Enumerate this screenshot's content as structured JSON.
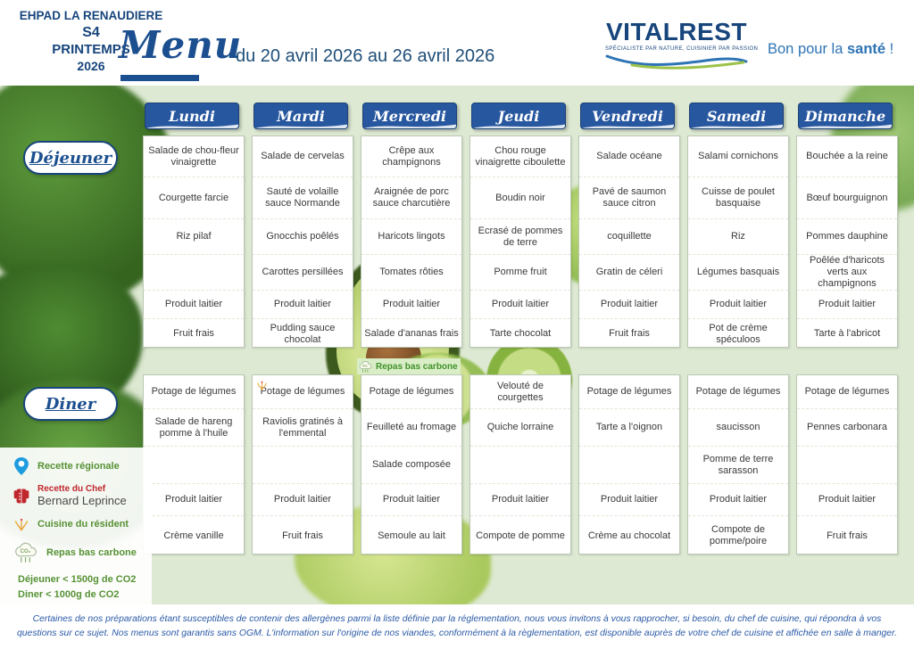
{
  "header": {
    "facility_line1": "EHPAD LA RENAUDIERE",
    "facility_line2": "S4",
    "facility_line3": "PRINTEMPS",
    "facility_line4": "2026",
    "menu_script": "Menu",
    "date_range": "du 20 avril 2026 au 26 avril 2026",
    "logo": {
      "brand": "VITALREST",
      "tagline": "SPÉCIALISTE PAR NATURE, CUISINIER PAR PASSION",
      "slogan_prefix": "Bon pour la ",
      "slogan_bold": "santé",
      "slogan_suffix": " !"
    }
  },
  "sections": {
    "lunch_label": "Déjeuner",
    "dinner_label": "Diner"
  },
  "days": [
    "Lundi",
    "Mardi",
    "Mercredi",
    "Jeudi",
    "Vendredi",
    "Samedi",
    "Dimanche"
  ],
  "lunch": [
    [
      "Salade de chou-fleur vinaigrette",
      "Courgette farcie",
      "Riz pilaf",
      "",
      "Produit laitier",
      "Fruit frais"
    ],
    [
      "Salade de cervelas",
      "Sauté de volaille sauce Normande",
      "Gnocchis poêlés",
      "Carottes persillées",
      "Produit laitier",
      "Pudding sauce chocolat"
    ],
    [
      "Crêpe aux champignons",
      "Araignée de porc sauce charcutière",
      "Haricots lingots",
      "Tomates rôties",
      "Produit laitier",
      "Salade d'ananas frais"
    ],
    [
      "Chou rouge vinaigrette ciboulette",
      "Boudin noir",
      "Ecrasé de pommes de terre",
      "Pomme fruit",
      "Produit laitier",
      "Tarte chocolat"
    ],
    [
      "Salade océane",
      "Pavé de saumon sauce citron",
      "coquillette",
      "Gratin de céleri",
      "Produit laitier",
      "Fruit frais"
    ],
    [
      "Salami cornichons",
      "Cuisse de poulet basquaise",
      "Riz",
      "Légumes basquais",
      "Produit laitier",
      "Pot de crème spéculoos"
    ],
    [
      "Bouchée a la reine",
      "Bœuf bourguignon",
      "Pommes dauphine",
      "Poêlée d'haricots verts aux champignons",
      "Produit laitier",
      "Tarte à l'abricot"
    ]
  ],
  "dinner": [
    [
      "Potage de légumes",
      "Salade de hareng pomme à l'huile",
      "",
      "Produit laitier",
      "Crème vanille"
    ],
    [
      "Potage de légumes",
      "Raviolis gratinés à l'emmental",
      "",
      "Produit laitier",
      "Fruit frais"
    ],
    [
      "Potage de légumes",
      "Feuilleté au fromage",
      "Salade composée",
      "Produit laitier",
      "Semoule au lait"
    ],
    [
      "Velouté de courgettes",
      "Quiche lorraine",
      "",
      "Produit laitier",
      "Compote de pomme"
    ],
    [
      "Potage de légumes",
      "Tarte a l'oignon",
      "",
      "Produit laitier",
      "Crème au chocolat"
    ],
    [
      "Potage de légumes",
      "saucisson",
      "Pomme de terre sarasson",
      "Produit laitier",
      "Compote de pomme/poire"
    ],
    [
      "Potage de légumes",
      "Pennes carbonara",
      "",
      "Produit laitier",
      "Fruit frais"
    ]
  ],
  "markers": {
    "low_carbon_label": "Repas bas carbone",
    "low_carbon_day_index": 2,
    "resident_icon_day_index": 1
  },
  "legend": {
    "regional_label": "Recette régionale",
    "chef_label": "Recette du Chef",
    "chef_name": "Bernard Leprince",
    "resident_label": "Cuisine du résident",
    "low_carbon_label": "Repas bas carbone",
    "low_carbon_line2": "Déjeuner < 1500g de CO2",
    "low_carbon_line3": "Diner < 1000g de CO2"
  },
  "footer": {
    "line1": "Certaines de nos préparations étant susceptibles de contenir des allergènes parmi la liste définie par la réglementation, nous vous invitons à vous rapprocher, si besoin, du chef de cuisine, qui répondra à vos",
    "line2": "questions sur ce sujet. Nos menus sont garantis sans OGM. L'information sur l'origine de nos viandes, conformément à la règlementation, est disponible auprès de votre chef de cuisine et affichée en salle à manger."
  },
  "colors": {
    "brand_blue": "#17457c",
    "day_header_blue": "#27579f",
    "legend_green": "#569134",
    "chef_red": "#c0272d",
    "board_green": "#dde9d2",
    "badge_green_bg": "#d9eec6",
    "footer_blue": "#2b5aa6"
  }
}
